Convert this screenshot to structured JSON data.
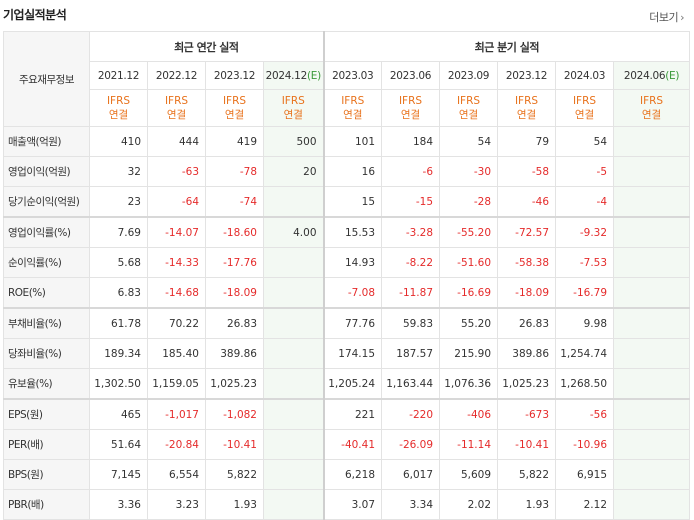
{
  "header": {
    "title": "기업실적분석",
    "more_label": "더보기"
  },
  "table": {
    "label_header": "주요재무정보",
    "group_annual": "최근 연간 실적",
    "group_quarter": "최근 분기 실적",
    "annual_periods": [
      {
        "label": "2021.12",
        "est": ""
      },
      {
        "label": "2022.12",
        "est": ""
      },
      {
        "label": "2023.12",
        "est": ""
      },
      {
        "label": "2024.12",
        "est": "(E)"
      }
    ],
    "quarter_periods": [
      {
        "label": "2023.03",
        "est": ""
      },
      {
        "label": "2023.06",
        "est": ""
      },
      {
        "label": "2023.09",
        "est": ""
      },
      {
        "label": "2023.12",
        "est": ""
      },
      {
        "label": "2024.03",
        "est": ""
      },
      {
        "label": "2024.06",
        "est": "(E)"
      }
    ],
    "ifrs_line1": "IFRS",
    "ifrs_line2": "연결",
    "rows": [
      {
        "label": "매출액(억원)",
        "values": [
          "410",
          "444",
          "419",
          "500",
          "101",
          "184",
          "54",
          "79",
          "54",
          ""
        ]
      },
      {
        "label": "영업이익(억원)",
        "values": [
          "32",
          "-63",
          "-78",
          "20",
          "16",
          "-6",
          "-30",
          "-58",
          "-5",
          ""
        ]
      },
      {
        "label": "당기순이익(억원)",
        "values": [
          "23",
          "-64",
          "-74",
          "",
          "15",
          "-15",
          "-28",
          "-46",
          "-4",
          ""
        ]
      },
      {
        "label": "영업이익률(%)",
        "values": [
          "7.69",
          "-14.07",
          "-18.60",
          "4.00",
          "15.53",
          "-3.28",
          "-55.20",
          "-72.57",
          "-9.32",
          ""
        ]
      },
      {
        "label": "순이익률(%)",
        "values": [
          "5.68",
          "-14.33",
          "-17.76",
          "",
          "14.93",
          "-8.22",
          "-51.60",
          "-58.38",
          "-7.53",
          ""
        ]
      },
      {
        "label": "ROE(%)",
        "values": [
          "6.83",
          "-14.68",
          "-18.09",
          "",
          "-7.08",
          "-11.87",
          "-16.69",
          "-18.09",
          "-16.79",
          ""
        ]
      },
      {
        "label": "부채비율(%)",
        "values": [
          "61.78",
          "70.22",
          "26.83",
          "",
          "77.76",
          "59.83",
          "55.20",
          "26.83",
          "9.98",
          ""
        ]
      },
      {
        "label": "당좌비율(%)",
        "values": [
          "189.34",
          "185.40",
          "389.86",
          "",
          "174.15",
          "187.57",
          "215.90",
          "389.86",
          "1,254.74",
          ""
        ]
      },
      {
        "label": "유보율(%)",
        "values": [
          "1,302.50",
          "1,159.05",
          "1,025.23",
          "",
          "1,205.24",
          "1,163.44",
          "1,076.36",
          "1,025.23",
          "1,268.50",
          ""
        ]
      },
      {
        "label": "EPS(원)",
        "values": [
          "465",
          "-1,017",
          "-1,082",
          "",
          "221",
          "-220",
          "-406",
          "-673",
          "-56",
          ""
        ]
      },
      {
        "label": "PER(배)",
        "values": [
          "51.64",
          "-20.84",
          "-10.41",
          "",
          "-40.41",
          "-26.09",
          "-11.14",
          "-10.41",
          "-10.96",
          ""
        ]
      },
      {
        "label": "BPS(원)",
        "values": [
          "7,145",
          "6,554",
          "5,822",
          "",
          "6,218",
          "6,017",
          "5,609",
          "5,822",
          "6,915",
          ""
        ]
      },
      {
        "label": "PBR(배)",
        "values": [
          "3.36",
          "3.23",
          "1.93",
          "",
          "3.07",
          "3.34",
          "2.02",
          "1.93",
          "2.12",
          ""
        ]
      }
    ]
  },
  "colors": {
    "negative": "#e52b2b",
    "ifrs": "#e8721c",
    "estimate_bg": "#f3f9f3",
    "estimate_mark": "#3a9a3a"
  },
  "icons": {
    "more": "chevron-right-icon"
  }
}
